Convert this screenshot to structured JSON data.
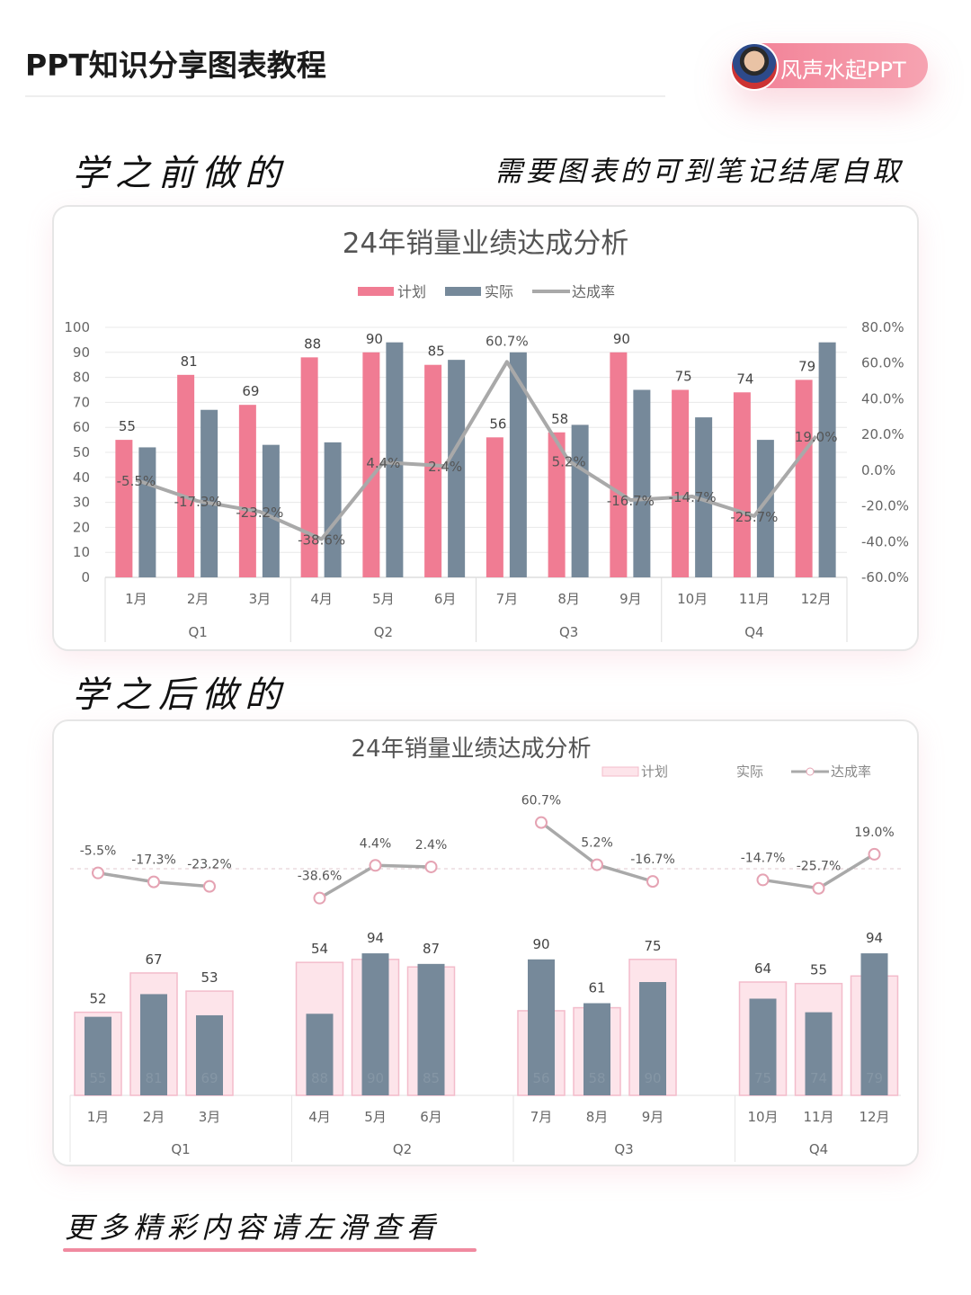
{
  "header": {
    "title": "PPT知识分享图表教程",
    "badge": "风声水起PPT"
  },
  "labels": {
    "before": "学之前做的",
    "note": "需要图表的可到笔记结尾自取",
    "after": "学之后做的",
    "more": "更多精彩内容请左滑查看"
  },
  "colors": {
    "plan": "#f07c93",
    "actual": "#76899a",
    "rate": "#a9a9a9",
    "plan_light": "#fde4ea"
  },
  "chart_data": [
    {
      "type": "bar+line",
      "title": "24年销量业绩达成分析",
      "legend": [
        "计划",
        "实际",
        "达成率"
      ],
      "legend_position": "top",
      "categories": [
        "1月",
        "2月",
        "3月",
        "4月",
        "5月",
        "6月",
        "7月",
        "8月",
        "9月",
        "10月",
        "11月",
        "12月"
      ],
      "groups": [
        "Q1",
        "Q2",
        "Q3",
        "Q4"
      ],
      "series": [
        {
          "name": "计划",
          "type": "bar",
          "values": [
            55,
            81,
            69,
            88,
            90,
            85,
            56,
            58,
            90,
            75,
            74,
            79
          ]
        },
        {
          "name": "实际",
          "type": "bar",
          "values": [
            52,
            67,
            53,
            54,
            94,
            87,
            90,
            61,
            75,
            64,
            55,
            94
          ]
        },
        {
          "name": "达成率",
          "type": "line",
          "axis": "right",
          "values": [
            -5.5,
            -17.3,
            -23.2,
            -38.6,
            4.4,
            2.4,
            60.7,
            5.2,
            -16.7,
            -14.7,
            -25.7,
            19.0
          ]
        }
      ],
      "plan_labels_shown": true,
      "ylim": [
        0,
        100
      ],
      "yticks": [
        0,
        10,
        20,
        30,
        40,
        50,
        60,
        70,
        80,
        90,
        100
      ],
      "y2lim": [
        -60,
        80
      ],
      "y2ticks": [
        "-60.0%",
        "-40.0%",
        "-20.0%",
        "0.0%",
        "20.0%",
        "40.0%",
        "60.0%",
        "80.0%"
      ],
      "grid": true
    },
    {
      "type": "bar+line",
      "title": "24年销量业绩达成分析",
      "legend": [
        "计划",
        "实际",
        "达成率"
      ],
      "legend_position": "top-right",
      "categories": [
        "1月",
        "2月",
        "3月",
        "4月",
        "5月",
        "6月",
        "7月",
        "8月",
        "9月",
        "10月",
        "11月",
        "12月"
      ],
      "groups": [
        "Q1",
        "Q2",
        "Q3",
        "Q4"
      ],
      "series": [
        {
          "name": "计划",
          "type": "bar",
          "values": [
            55,
            81,
            69,
            88,
            90,
            85,
            56,
            58,
            90,
            75,
            74,
            79
          ]
        },
        {
          "name": "实际",
          "type": "bar",
          "values": [
            52,
            67,
            53,
            54,
            94,
            87,
            90,
            61,
            75,
            64,
            55,
            94
          ]
        },
        {
          "name": "达成率",
          "type": "line",
          "values": [
            -5.5,
            -17.3,
            -23.2,
            -38.6,
            4.4,
            2.4,
            60.7,
            5.2,
            -16.7,
            -14.7,
            -25.7,
            19.0
          ]
        }
      ],
      "grid": false
    }
  ]
}
